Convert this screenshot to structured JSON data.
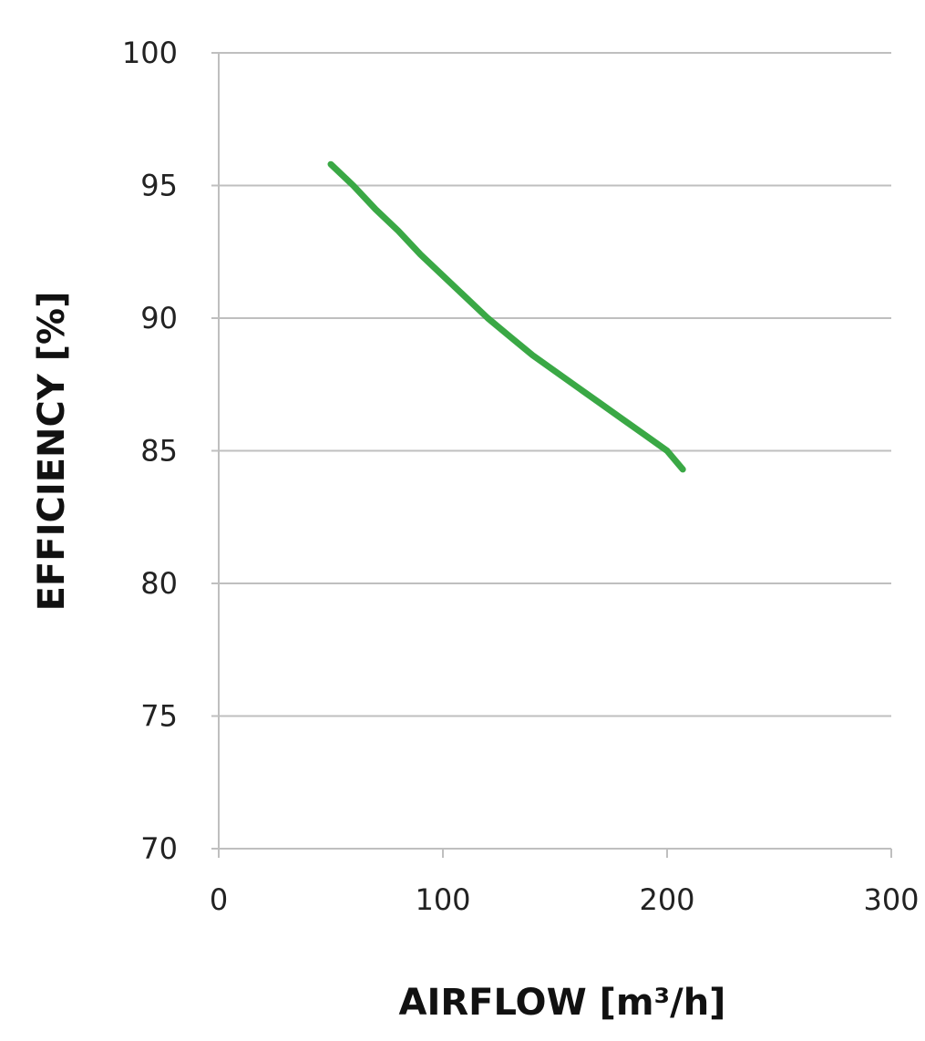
{
  "chart_data": {
    "type": "line",
    "title": "",
    "xlabel": "AIRFLOW [m³/h]",
    "ylabel": "EFFICIENCY [%]",
    "xlim": [
      0,
      300
    ],
    "ylim": [
      70,
      100
    ],
    "x_ticks": [
      "0",
      "100",
      "200",
      "300"
    ],
    "y_ticks": [
      "70",
      "75",
      "80",
      "85",
      "90",
      "95",
      "100"
    ],
    "grid": "horizontal",
    "legend": "none",
    "series": [
      {
        "color": "#3aa845",
        "x": [
          50,
          60,
          70,
          80,
          90,
          100,
          110,
          120,
          130,
          140,
          150,
          160,
          170,
          180,
          190,
          200,
          207
        ],
        "y": [
          95.8,
          95.0,
          94.1,
          93.3,
          92.4,
          91.6,
          90.8,
          90.0,
          89.3,
          88.6,
          88.0,
          87.4,
          86.8,
          86.2,
          85.6,
          85.0,
          84.3
        ]
      }
    ]
  },
  "colors": {
    "grid": "#bfbfbf",
    "axis": "#bfbfbf"
  }
}
